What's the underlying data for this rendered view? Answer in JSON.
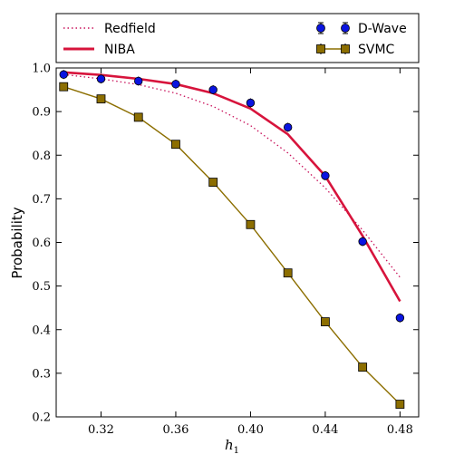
{
  "chart_data": {
    "type": "line",
    "xlabel": "h",
    "xlabel_sub": "1",
    "ylabel": "Probability",
    "xlim": [
      0.296,
      0.49
    ],
    "ylim": [
      0.2,
      1.0
    ],
    "xticks": [
      0.32,
      0.36,
      0.4,
      0.44,
      0.48
    ],
    "xtick_labels": [
      "0.32",
      "0.36",
      "0.40",
      "0.44",
      "0.48"
    ],
    "yticks": [
      0.2,
      0.3,
      0.4,
      0.5,
      0.6,
      0.7,
      0.8,
      0.9,
      1.0
    ],
    "ytick_labels": [
      "0.2",
      "0.3",
      "0.4",
      "0.5",
      "0.6",
      "0.7",
      "0.8",
      "0.9",
      "1.0"
    ],
    "legend_position": "top, outside plot area",
    "series": [
      {
        "name": "Redfield",
        "style": "dotted",
        "color": "#c8105a",
        "x": [
          0.3,
          0.32,
          0.34,
          0.36,
          0.38,
          0.4,
          0.42,
          0.44,
          0.46,
          0.48
        ],
        "values": [
          0.985,
          0.975,
          0.962,
          0.942,
          0.912,
          0.868,
          0.805,
          0.725,
          0.628,
          0.52
        ]
      },
      {
        "name": "NIBA",
        "style": "solid-thick",
        "color": "#d7143c",
        "x": [
          0.3,
          0.32,
          0.34,
          0.36,
          0.38,
          0.4,
          0.42,
          0.44,
          0.46,
          0.48
        ],
        "values": [
          0.99,
          0.984,
          0.975,
          0.963,
          0.942,
          0.907,
          0.848,
          0.752,
          0.615,
          0.465
        ]
      },
      {
        "name": "D-Wave",
        "style": "markers-errorbars",
        "color": "#0a14e0",
        "x": [
          0.3,
          0.32,
          0.34,
          0.36,
          0.38,
          0.4,
          0.42,
          0.44,
          0.46,
          0.48
        ],
        "values": [
          0.985,
          0.975,
          0.97,
          0.963,
          0.95,
          0.92,
          0.864,
          0.753,
          0.602,
          0.427
        ]
      },
      {
        "name": "SVMC",
        "style": "line-square-markers",
        "color": "#8c6e00",
        "x": [
          0.3,
          0.32,
          0.34,
          0.36,
          0.38,
          0.4,
          0.42,
          0.44,
          0.46,
          0.48
        ],
        "values": [
          0.957,
          0.929,
          0.887,
          0.825,
          0.738,
          0.641,
          0.53,
          0.418,
          0.314,
          0.229
        ]
      }
    ]
  }
}
